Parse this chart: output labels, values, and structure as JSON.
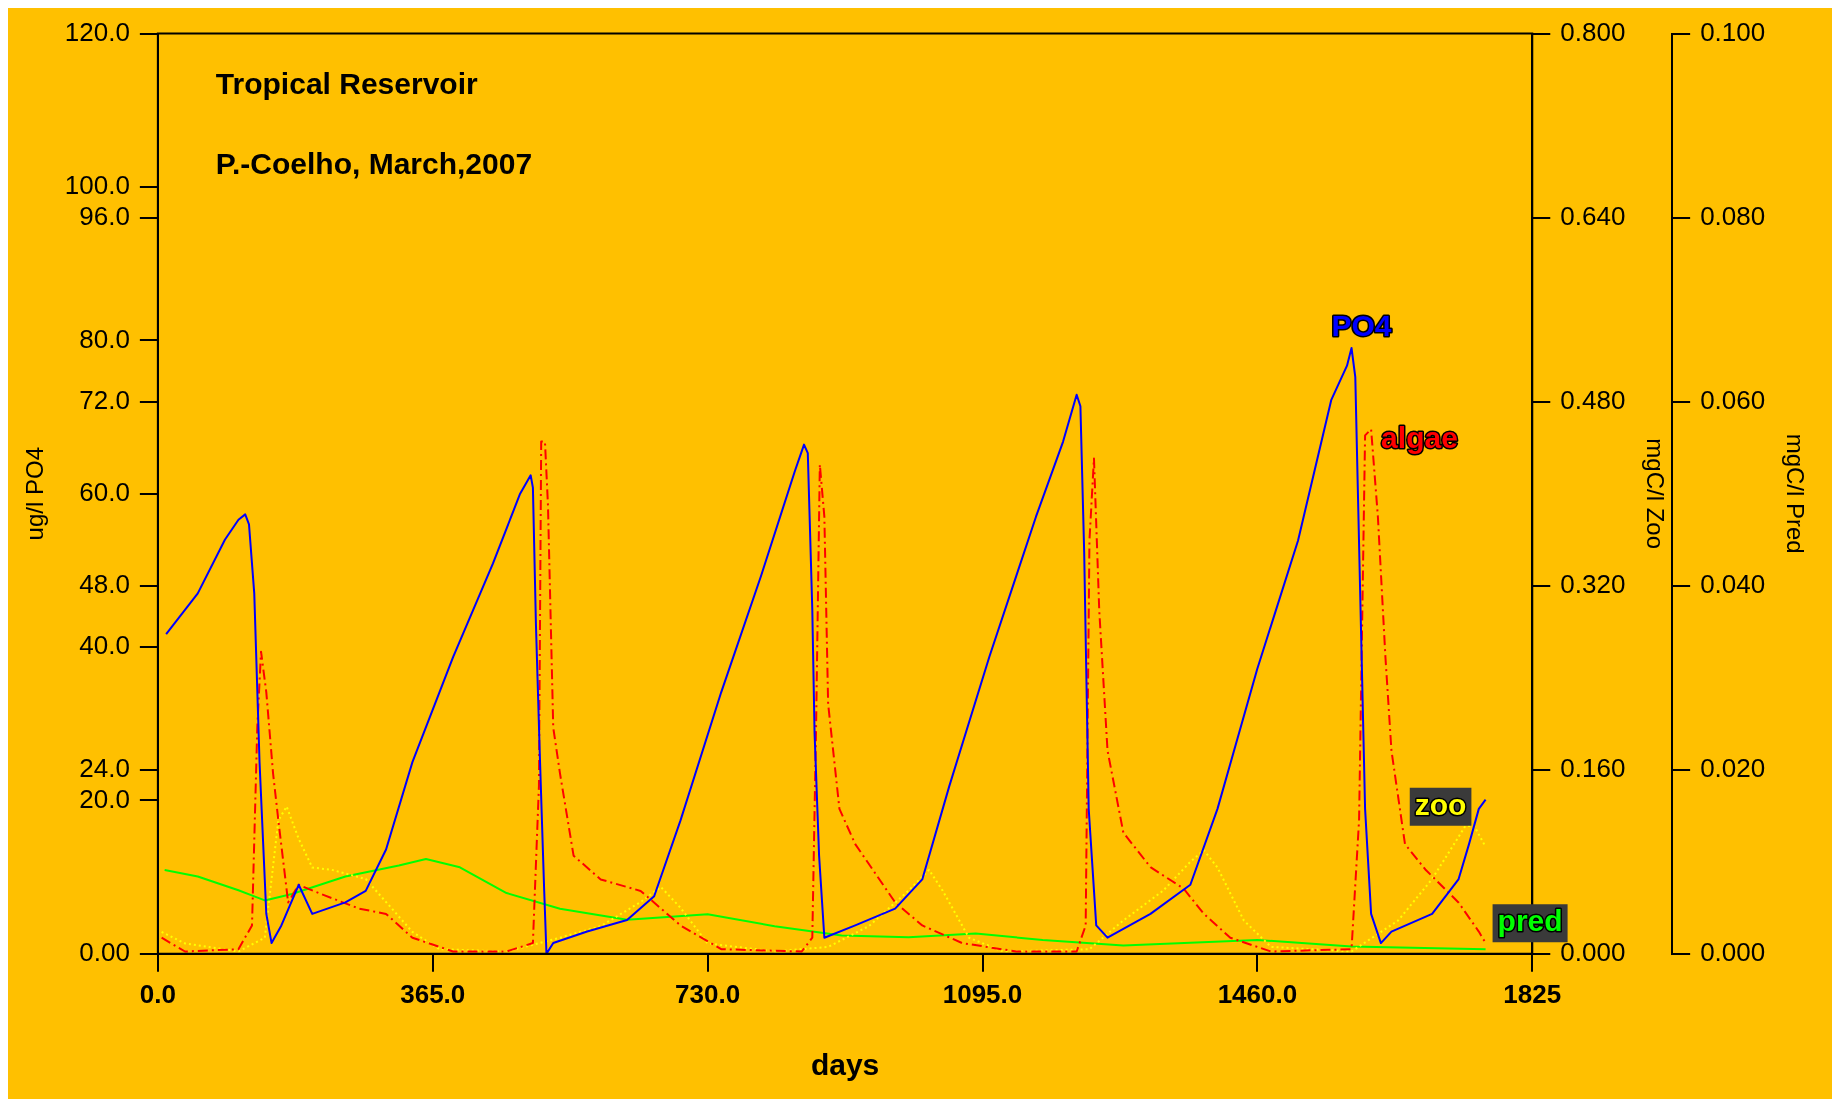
{
  "chart_data": {
    "type": "line",
    "title": "Tropical Reservoir",
    "subtitle": "P.-Coelho, March,2007",
    "xlabel": "days",
    "ylabel": "ug/l PO4",
    "y2label": "mgC/l Zoo",
    "y3label": "mgC/l Pred",
    "xlim": [
      0,
      1825
    ],
    "xticks": [
      {
        "value": 0,
        "label": "0.0"
      },
      {
        "value": 365,
        "label": "365.0"
      },
      {
        "value": 730,
        "label": "730.0"
      },
      {
        "value": 1095,
        "label": "1095.0"
      },
      {
        "value": 1460,
        "label": "1460.0"
      },
      1825
    ],
    "ylim": [
      0,
      120
    ],
    "yticks": [
      {
        "value": 0,
        "label": "0.00"
      },
      {
        "value": 20,
        "label": "20.0"
      },
      {
        "value": 24,
        "label": "24.0"
      },
      {
        "value": 40,
        "label": "40.0"
      },
      {
        "value": 48,
        "label": "48.0"
      },
      {
        "value": 60,
        "label": "60.0"
      },
      {
        "value": 72,
        "label": "72.0"
      },
      {
        "value": 80,
        "label": "80.0"
      },
      {
        "value": 96,
        "label": "96.0"
      },
      {
        "value": 100,
        "label": "100.0"
      },
      {
        "value": 120,
        "label": "120.0"
      }
    ],
    "y2lim": [
      0,
      0.8
    ],
    "y2ticks": [
      {
        "value": 0,
        "label": "0.000"
      },
      {
        "value": 0.16,
        "label": "0.160"
      },
      {
        "value": 0.32,
        "label": "0.320"
      },
      {
        "value": 0.48,
        "label": "0.480"
      },
      {
        "value": 0.64,
        "label": "0.640"
      },
      {
        "value": 0.8,
        "label": "0.800"
      }
    ],
    "y3lim": [
      0,
      0.1
    ],
    "y3ticks": [
      {
        "value": 0,
        "label": "0.000"
      },
      {
        "value": 0.02,
        "label": "0.020"
      },
      {
        "value": 0.04,
        "label": "0.040"
      },
      {
        "value": 0.06,
        "label": "0.060"
      },
      {
        "value": 0.08,
        "label": "0.080"
      },
      {
        "value": 0.1,
        "label": "0.100"
      }
    ],
    "grid": false,
    "legend": false,
    "marker": "none",
    "series": [
      {
        "name": "PO4",
        "color": "#0000ff",
        "line_style": "solid",
        "x": [
          11,
          53,
          89,
          107,
          116,
          121,
          128,
          135,
          144,
          151,
          164,
          187,
          205,
          249,
          276,
          303,
          338,
          392,
          445,
          481,
          495,
          498,
          502,
          507,
          513,
          516,
          525,
          570,
          623,
          659,
          694,
          748,
          801,
          846,
          858,
          863,
          869,
          872,
          878,
          885,
          926,
          979,
          1015,
          1051,
          1104,
          1166,
          1202,
          1220,
          1225,
          1230,
          1236,
          1246,
          1261,
          1318,
          1371,
          1407,
          1460,
          1514,
          1558,
          1579,
          1585,
          1590,
          1597,
          1603,
          1611,
          1624,
          1638,
          1692,
          1727,
          1741,
          1754,
          1763
        ],
        "values": [
          41.7,
          47,
          54,
          56.6,
          57.3,
          56,
          47,
          25,
          5.2,
          1.4,
          3.7,
          9,
          5.2,
          6.7,
          8.2,
          13.6,
          25,
          38.7,
          50.9,
          60,
          62.4,
          60.8,
          43,
          26.5,
          8.2,
          0,
          1.4,
          2.9,
          4.4,
          7.5,
          17.4,
          34.1,
          49.3,
          63,
          66.4,
          65.3,
          44.8,
          28.8,
          12.8,
          2.1,
          3.7,
          5.9,
          9.7,
          21.9,
          38.7,
          57,
          66.8,
          72.9,
          71.4,
          52.4,
          18.9,
          3.7,
          2.1,
          5.2,
          9,
          18.9,
          37.2,
          53.9,
          72.2,
          76.7,
          79,
          75.2,
          44.8,
          18.9,
          5.2,
          1.4,
          2.9,
          5.2,
          9.7,
          14.3,
          18.9,
          20.1
        ]
      },
      {
        "name": "algae",
        "color": "#ff0000",
        "line_style": "dashed",
        "x": [
          5,
          36,
          107,
          125,
          132,
          137,
          144,
          153,
          160,
          173,
          187,
          214,
          267,
          303,
          338,
          392,
          463,
          498,
          506,
          509,
          514,
          518,
          525,
          534,
          552,
          588,
          641,
          694,
          748,
          855,
          869,
          874,
          879,
          885,
          890,
          905,
          926,
          979,
          1015,
          1068,
          1140,
          1220,
          1232,
          1237,
          1243,
          1250,
          1261,
          1282,
          1318,
          1362,
          1389,
          1424,
          1478,
          1585,
          1595,
          1603,
          1611,
          1620,
          1630,
          1638,
          1656,
          1683,
          1727,
          1754,
          1763
        ],
        "values": [
          2.1,
          0.3,
          0.6,
          3.7,
          29.5,
          39.4,
          34.1,
          23.5,
          17.4,
          6.7,
          9,
          7.9,
          5.9,
          5.2,
          2.1,
          0.3,
          0.3,
          1.4,
          21.9,
          66.8,
          66.8,
          58.5,
          29.5,
          23.5,
          12.8,
          9.7,
          8.2,
          3.7,
          0.6,
          0.3,
          2.1,
          29.5,
          63.8,
          57,
          32.6,
          18.9,
          14.3,
          6.7,
          3.7,
          1.4,
          0.3,
          0.3,
          3.7,
          53.9,
          64.6,
          44.8,
          26.5,
          15.8,
          11.3,
          8.5,
          5.2,
          2.1,
          0.3,
          0.6,
          17.4,
          67.6,
          68.4,
          57,
          38.7,
          26.5,
          14.3,
          11,
          6.7,
          2.9,
          1.4
        ]
      },
      {
        "name": "zoo",
        "color": "#ffff00",
        "line_style": "dotted",
        "axis": "y2",
        "x": [
          5,
          36,
          107,
          142,
          160,
          171,
          187,
          205,
          231,
          276,
          303,
          338,
          374,
          463,
          534,
          588,
          641,
          668,
          694,
          730,
          819,
          890,
          944,
          997,
          1024,
          1042,
          1077,
          1122,
          1237,
          1282,
          1335,
          1371,
          1389,
          1407,
          1442,
          1478,
          1585,
          1647,
          1692,
          1736,
          1748,
          1763
        ],
        "values": [
          0.019,
          0.009,
          0.002,
          0.014,
          0.116,
          0.128,
          0.1,
          0.075,
          0.073,
          0.065,
          0.045,
          0.019,
          0.004,
          0.002,
          0.014,
          0.024,
          0.045,
          0.058,
          0.04,
          0.009,
          0.002,
          0.006,
          0.024,
          0.055,
          0.073,
          0.055,
          0.014,
          0.002,
          0.004,
          0.029,
          0.055,
          0.08,
          0.09,
          0.075,
          0.029,
          0.006,
          0.002,
          0.029,
          0.065,
          0.111,
          0.111,
          0.093
        ]
      },
      {
        "name": "pred",
        "color": "#00ff00",
        "line_style": "solid",
        "axis": "y3",
        "x": [
          9,
          53,
          107,
          142,
          178,
          249,
          320,
          356,
          401,
          463,
          534,
          623,
          730,
          819,
          908,
          997,
          1086,
          1175,
          1282,
          1460,
          1585,
          1763
        ],
        "values": [
          0.0091,
          0.0084,
          0.0069,
          0.0058,
          0.0065,
          0.0084,
          0.0096,
          0.0103,
          0.0094,
          0.0066,
          0.0049,
          0.0037,
          0.0043,
          0.003,
          0.002,
          0.0018,
          0.0022,
          0.0015,
          0.0009,
          0.0015,
          0.0008,
          0.0005
        ]
      }
    ]
  }
}
